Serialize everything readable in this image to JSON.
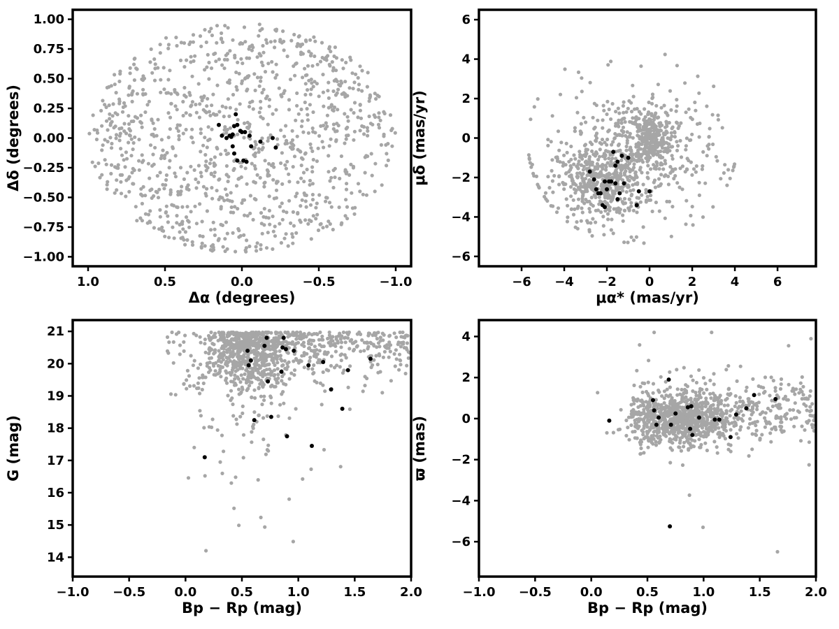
{
  "colors": {
    "field_stars": "#a6a6a6",
    "members": "#000000",
    "axes": "#000000"
  },
  "chart_data": [
    {
      "id": "sky",
      "type": "scatter",
      "title": "",
      "xlabel": "Δα (degrees)",
      "ylabel": "Δδ (degrees)",
      "xlim": [
        1.1,
        -1.1
      ],
      "ylim": [
        -1.08,
        1.08
      ],
      "xticks": [
        1.0,
        0.5,
        0.0,
        -0.5,
        -1.0
      ],
      "xtick_labels": [
        "1.0",
        "0.5",
        "0.0",
        "−0.5",
        "−1.0"
      ],
      "yticks": [
        1.0,
        0.75,
        0.5,
        0.25,
        0.0,
        -0.25,
        -0.5,
        -0.75,
        -1.0
      ],
      "ytick_labels": [
        "1.00",
        "0.75",
        "0.50",
        "0.25",
        "0.00",
        "−0.25",
        "−0.50",
        "−0.75",
        "−1.00"
      ],
      "grid": false,
      "field": {
        "count": 1100,
        "shape": "disk",
        "center": [
          0,
          0
        ],
        "radius": 1.0
      },
      "members": {
        "x": [
          0.15,
          0.13,
          0.1,
          0.08,
          0.07,
          0.06,
          0.05,
          0.04,
          0.03,
          0.01,
          0.0,
          -0.02,
          -0.05,
          -0.06,
          0.05,
          0.06,
          0.03,
          -0.12,
          -0.2,
          -0.22,
          -0.03,
          -0.01
        ],
        "y": [
          0.11,
          0.02,
          0.0,
          0.02,
          0.01,
          0.03,
          0.1,
          0.2,
          0.11,
          0.06,
          0.05,
          0.05,
          0.02,
          -0.07,
          -0.13,
          -0.07,
          -0.19,
          -0.03,
          0.0,
          -0.08,
          -0.2,
          -0.19
        ]
      }
    },
    {
      "id": "pm",
      "type": "scatter",
      "title": "",
      "xlabel": "μα* (mas/yr)",
      "ylabel": "μδ (mas/yr)",
      "xlim": [
        -8,
        7.8
      ],
      "ylim": [
        -6.5,
        6.5
      ],
      "xticks": [
        -6,
        -4,
        -2,
        0,
        2,
        4,
        6
      ],
      "xtick_labels": [
        "−6",
        "−4",
        "−2",
        "0",
        "2",
        "4",
        "6"
      ],
      "yticks": [
        6,
        4,
        2,
        0,
        -2,
        -4,
        -6
      ],
      "ytick_labels": [
        "6",
        "4",
        "2",
        "0",
        "−2",
        "−4",
        "−6"
      ],
      "grid": false,
      "field": {
        "count": 1100,
        "clumps": [
          {
            "center": [
              0,
              0
            ],
            "sigma": [
              0.5,
              0.7
            ],
            "weight": 0.22
          },
          {
            "center": [
              -2.3,
              -2.3
            ],
            "sigma": [
              1.0,
              0.9
            ],
            "weight": 0.33
          },
          {
            "center": [
              -1.0,
              -1.0
            ],
            "sigma": [
              2.0,
              1.8
            ],
            "weight": 0.45
          }
        ]
      },
      "members": {
        "x": [
          -2.8,
          -2.6,
          -2.5,
          -2.4,
          -2.3,
          -2.2,
          -2.1,
          -2.1,
          -2.0,
          -1.9,
          -1.7,
          -1.6,
          -1.5,
          -1.5,
          -1.4,
          -1.2,
          -1.0,
          -0.6,
          -0.5,
          0.0,
          -1.8,
          -1.6,
          -1.3
        ],
        "y": [
          -1.7,
          -2.1,
          -2.6,
          -2.8,
          -2.8,
          -3.4,
          -3.5,
          -2.2,
          -2.6,
          -2.2,
          -0.7,
          -1.4,
          -1.2,
          -3.1,
          -2.8,
          -2.3,
          -1.0,
          -3.4,
          -2.7,
          -2.7,
          -2.2,
          -2.3,
          -0.9
        ]
      }
    },
    {
      "id": "cmd",
      "type": "scatter",
      "title": "",
      "xlabel": "Bp − Rp (mag)",
      "ylabel": "G (mag)",
      "xlim": [
        -1.0,
        2.0
      ],
      "ylim": [
        13.4,
        21.35
      ],
      "xticks": [
        -1.0,
        -0.5,
        0.0,
        0.5,
        1.0,
        1.5,
        2.0
      ],
      "xtick_labels": [
        "−1.0",
        "−0.5",
        "0.0",
        "0.5",
        "1.0",
        "1.5",
        "2.0"
      ],
      "yticks": [
        21,
        20,
        19,
        18,
        17,
        16,
        15,
        14
      ],
      "ytick_labels": [
        "21",
        "20",
        "19",
        "18",
        "17",
        "16",
        "15",
        "14"
      ],
      "grid": false,
      "field": {
        "count": 1100,
        "shape": "cmd"
      },
      "members": {
        "x": [
          0.17,
          0.55,
          0.56,
          0.58,
          0.61,
          0.7,
          0.72,
          0.73,
          0.76,
          0.85,
          0.87,
          0.89,
          0.9,
          0.96,
          1.09,
          1.12,
          1.22,
          1.29,
          1.39,
          1.44,
          1.64,
          0.86
        ],
        "y": [
          17.1,
          20.4,
          19.95,
          20.1,
          18.25,
          20.55,
          20.8,
          19.45,
          18.35,
          19.75,
          20.8,
          20.45,
          17.75,
          20.4,
          19.95,
          17.45,
          20.05,
          19.2,
          18.6,
          19.8,
          20.15,
          20.5
        ]
      }
    },
    {
      "id": "parallax",
      "type": "scatter",
      "title": "",
      "xlabel": "Bp − Rp (mag)",
      "ylabel": "ϖ (mas)",
      "xlim": [
        -1.0,
        2.0
      ],
      "ylim": [
        -7.7,
        4.8
      ],
      "xticks": [
        -1.0,
        -0.5,
        0.0,
        0.5,
        1.0,
        1.5,
        2.0
      ],
      "xtick_labels": [
        "−1.0",
        "−0.5",
        "0.0",
        "0.5",
        "1.0",
        "1.5",
        "2.0"
      ],
      "yticks": [
        4,
        2,
        0,
        -2,
        -4,
        -6
      ],
      "ytick_labels": [
        "4",
        "2",
        "0",
        "−2",
        "−4",
        "−6"
      ],
      "grid": false,
      "field": {
        "count": 1100,
        "shape": "parallax"
      },
      "members": {
        "x": [
          0.16,
          0.55,
          0.56,
          0.58,
          0.6,
          0.69,
          0.71,
          0.75,
          0.86,
          0.88,
          0.89,
          0.9,
          0.96,
          1.1,
          1.14,
          1.24,
          1.29,
          1.38,
          1.45,
          1.64,
          0.7
        ],
        "y": [
          -0.1,
          0.9,
          0.4,
          -0.3,
          0.05,
          1.9,
          -0.3,
          0.25,
          0.55,
          -0.5,
          0.6,
          -0.8,
          0.05,
          -0.05,
          -0.05,
          -0.9,
          0.2,
          0.5,
          1.15,
          0.95,
          -5.25
        ]
      }
    }
  ]
}
